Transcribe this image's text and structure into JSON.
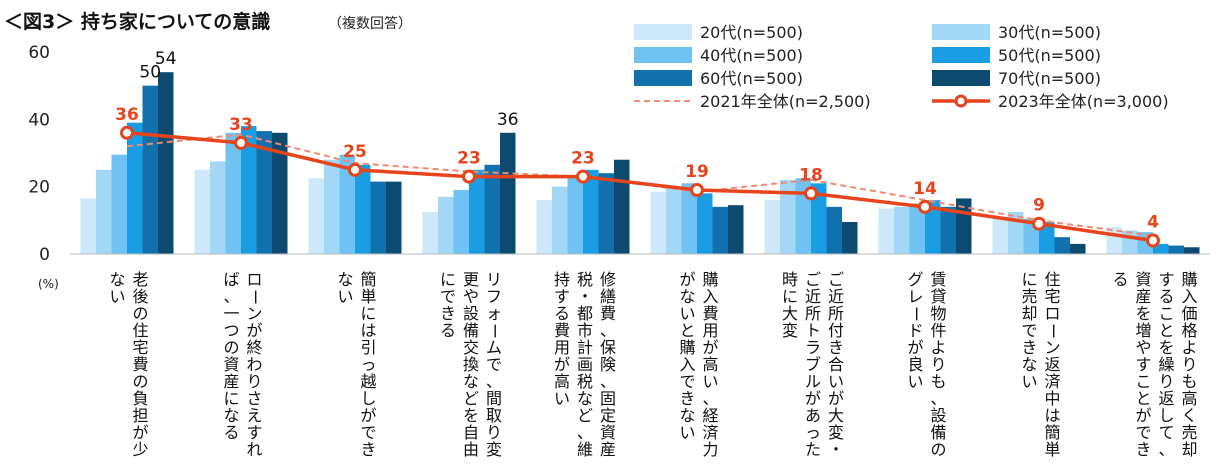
{
  "title": "＜図3＞ 持ち家についての意識",
  "title_note": "（複数回答）",
  "chart_data": {
    "type": "bar",
    "unit_label": "(%)",
    "ylim": [
      0,
      60
    ],
    "yticks": [
      "0",
      "20",
      "40",
      "60"
    ],
    "grid": false,
    "legend_position": "top-right",
    "categories": [
      "老後の住宅費の負担が少ない",
      "ローンが終わりさえすれば、一つの資産になる",
      "簡単には引っ越しができない",
      "リフォームで、間取り変更や設備交換などを自由にできる",
      "修繕費、保険、固定資産税・都市計画税など、維持する費用が高い",
      "購入費用が高い、経済力がないと購入できない",
      "ご近所付き合いが大変・ご近所トラブルがあった時に大変",
      "賃貸物件よりも、設備のグレードが良い",
      "住宅ローン返済中は簡単に売却できない",
      "購入価格よりも高く売却することを繰り返して、資産を増やすことができる"
    ],
    "series": [
      {
        "name": "20代(n=500)",
        "color": "#cce8fa",
        "values": [
          16.5,
          25,
          22.5,
          12.5,
          16,
          18.5,
          16,
          13.5,
          11,
          8
        ]
      },
      {
        "name": "30代(n=500)",
        "color": "#a2d7f6",
        "values": [
          25,
          27.5,
          28,
          17,
          20,
          20,
          22,
          14,
          12.5,
          7
        ]
      },
      {
        "name": "40代(n=500)",
        "color": "#6fc2f1",
        "values": [
          29.5,
          36,
          29.5,
          19,
          22.5,
          21,
          22.5,
          15,
          10.5,
          6.5
        ]
      },
      {
        "name": "50代(n=500)",
        "color": "#1a9de3",
        "values": [
          39,
          38,
          26.5,
          25,
          25,
          18,
          21,
          16,
          9.5,
          3
        ]
      },
      {
        "name": "60代(n=500)",
        "color": "#1271ad",
        "values": [
          50,
          36.5,
          21.5,
          26.5,
          24,
          14,
          14,
          14,
          5,
          2.5
        ]
      },
      {
        "name": "70代(n=500)",
        "color": "#0c4a70",
        "values": [
          54,
          36,
          21.5,
          36,
          28,
          14.5,
          9.5,
          16.5,
          3,
          2
        ]
      }
    ],
    "bar_value_labels": [
      {
        "category_index": 0,
        "series_index": 4,
        "text": "50"
      },
      {
        "category_index": 0,
        "series_index": 5,
        "text": "54"
      },
      {
        "category_index": 3,
        "series_index": 5,
        "text": "36"
      }
    ],
    "line_2021": {
      "name": "2021年全体(n=2,500)",
      "color": "#f28a72",
      "values": [
        32,
        35.5,
        27,
        24.5,
        23,
        18.5,
        22,
        16,
        10,
        5.5
      ]
    },
    "line_2023": {
      "name": "2023年全体(n=3,000)",
      "color": "#e8441c",
      "values": [
        36,
        33,
        25,
        23,
        23,
        19,
        18,
        14,
        9,
        4
      ],
      "labels": [
        "36",
        "33",
        "25",
        "23",
        "23",
        "19",
        "18",
        "14",
        "9",
        "4"
      ]
    }
  }
}
